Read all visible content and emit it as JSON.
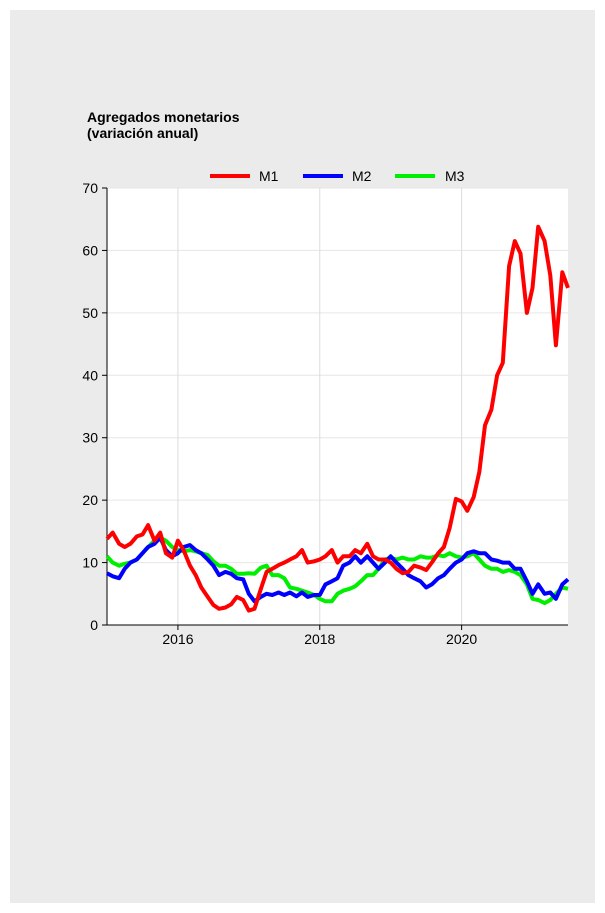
{
  "chart_data": {
    "type": "line",
    "title": "Agregados monetarios",
    "subtitle": "(variación anual)",
    "xlabel": "",
    "ylabel": "",
    "ylim": [
      0,
      70
    ],
    "yticks": [
      0,
      10,
      20,
      30,
      40,
      50,
      60,
      70
    ],
    "xlim": [
      2015.0,
      2021.5
    ],
    "xticks": [
      {
        "value": 2016.0,
        "label": "2016"
      },
      {
        "value": 2018.0,
        "label": "2018"
      },
      {
        "value": 2020.0,
        "label": "2020"
      }
    ],
    "grid": "vertical",
    "legend": "top",
    "series": [
      {
        "name": "M1",
        "color": "#ff0000",
        "points": [
          [
            2015.0,
            13.8
          ],
          [
            2015.08,
            14.8
          ],
          [
            2015.17,
            13.0
          ],
          [
            2015.25,
            12.5
          ],
          [
            2015.33,
            13.0
          ],
          [
            2015.42,
            14.2
          ],
          [
            2015.5,
            14.5
          ],
          [
            2015.58,
            16.0
          ],
          [
            2015.67,
            13.5
          ],
          [
            2015.75,
            14.8
          ],
          [
            2015.83,
            11.5
          ],
          [
            2015.92,
            10.8
          ],
          [
            2016.0,
            13.5
          ],
          [
            2016.08,
            12.0
          ],
          [
            2016.17,
            9.5
          ],
          [
            2016.25,
            8.0
          ],
          [
            2016.33,
            6.0
          ],
          [
            2016.42,
            4.5
          ],
          [
            2016.5,
            3.2
          ],
          [
            2016.58,
            2.6
          ],
          [
            2016.67,
            2.8
          ],
          [
            2016.75,
            3.3
          ],
          [
            2016.83,
            4.5
          ],
          [
            2016.92,
            4.0
          ],
          [
            2017.0,
            2.3
          ],
          [
            2017.08,
            2.6
          ],
          [
            2017.17,
            5.8
          ],
          [
            2017.25,
            8.5
          ],
          [
            2017.33,
            9.0
          ],
          [
            2017.42,
            9.6
          ],
          [
            2017.5,
            10.0
          ],
          [
            2017.58,
            10.5
          ],
          [
            2017.67,
            11.0
          ],
          [
            2017.75,
            12.0
          ],
          [
            2017.83,
            10.0
          ],
          [
            2017.92,
            10.2
          ],
          [
            2018.0,
            10.5
          ],
          [
            2018.08,
            11.0
          ],
          [
            2018.17,
            12.0
          ],
          [
            2018.25,
            10.0
          ],
          [
            2018.33,
            11.0
          ],
          [
            2018.42,
            11.0
          ],
          [
            2018.5,
            12.0
          ],
          [
            2018.58,
            11.5
          ],
          [
            2018.67,
            13.0
          ],
          [
            2018.75,
            11.0
          ],
          [
            2018.83,
            10.5
          ],
          [
            2018.92,
            10.5
          ],
          [
            2019.0,
            10.0
          ],
          [
            2019.08,
            9.0
          ],
          [
            2019.17,
            8.3
          ],
          [
            2019.25,
            8.5
          ],
          [
            2019.33,
            9.5
          ],
          [
            2019.42,
            9.2
          ],
          [
            2019.5,
            8.8
          ],
          [
            2019.58,
            10.0
          ],
          [
            2019.67,
            11.5
          ],
          [
            2019.75,
            12.5
          ],
          [
            2019.83,
            15.5
          ],
          [
            2019.92,
            20.2
          ],
          [
            2020.0,
            19.8
          ],
          [
            2020.08,
            18.3
          ],
          [
            2020.17,
            20.5
          ],
          [
            2020.25,
            24.5
          ],
          [
            2020.33,
            32.0
          ],
          [
            2020.42,
            34.5
          ],
          [
            2020.5,
            40.0
          ],
          [
            2020.58,
            42.0
          ],
          [
            2020.67,
            57.5
          ],
          [
            2020.75,
            61.5
          ],
          [
            2020.83,
            59.5
          ],
          [
            2020.92,
            50.0
          ],
          [
            2021.0,
            54.0
          ],
          [
            2021.08,
            63.8
          ],
          [
            2021.17,
            61.5
          ],
          [
            2021.25,
            56.0
          ],
          [
            2021.33,
            44.8
          ],
          [
            2021.42,
            56.5
          ],
          [
            2021.5,
            54.0
          ]
        ]
      },
      {
        "name": "M2",
        "color": "#0000ff",
        "points": [
          [
            2015.0,
            8.3
          ],
          [
            2015.08,
            7.8
          ],
          [
            2015.17,
            7.5
          ],
          [
            2015.25,
            9.0
          ],
          [
            2015.33,
            10.0
          ],
          [
            2015.42,
            10.5
          ],
          [
            2015.5,
            11.5
          ],
          [
            2015.58,
            12.5
          ],
          [
            2015.67,
            13.0
          ],
          [
            2015.75,
            14.0
          ],
          [
            2015.83,
            12.0
          ],
          [
            2015.92,
            11.0
          ],
          [
            2016.0,
            11.5
          ],
          [
            2016.08,
            12.5
          ],
          [
            2016.17,
            12.8
          ],
          [
            2016.25,
            12.0
          ],
          [
            2016.33,
            11.5
          ],
          [
            2016.42,
            10.5
          ],
          [
            2016.5,
            9.5
          ],
          [
            2016.58,
            8.0
          ],
          [
            2016.67,
            8.5
          ],
          [
            2016.75,
            8.2
          ],
          [
            2016.83,
            7.5
          ],
          [
            2016.92,
            7.3
          ],
          [
            2017.0,
            5.0
          ],
          [
            2017.08,
            3.8
          ],
          [
            2017.17,
            4.5
          ],
          [
            2017.25,
            5.0
          ],
          [
            2017.33,
            4.8
          ],
          [
            2017.42,
            5.2
          ],
          [
            2017.5,
            4.8
          ],
          [
            2017.58,
            5.2
          ],
          [
            2017.67,
            4.6
          ],
          [
            2017.75,
            5.2
          ],
          [
            2017.83,
            4.5
          ],
          [
            2017.92,
            4.8
          ],
          [
            2018.0,
            4.8
          ],
          [
            2018.08,
            6.5
          ],
          [
            2018.17,
            7.0
          ],
          [
            2018.25,
            7.5
          ],
          [
            2018.33,
            9.5
          ],
          [
            2018.42,
            10.0
          ],
          [
            2018.5,
            11.0
          ],
          [
            2018.58,
            10.0
          ],
          [
            2018.67,
            11.0
          ],
          [
            2018.75,
            10.0
          ],
          [
            2018.83,
            9.0
          ],
          [
            2018.92,
            10.0
          ],
          [
            2019.0,
            11.0
          ],
          [
            2019.08,
            10.0
          ],
          [
            2019.17,
            9.0
          ],
          [
            2019.25,
            8.0
          ],
          [
            2019.33,
            7.5
          ],
          [
            2019.42,
            7.0
          ],
          [
            2019.5,
            6.0
          ],
          [
            2019.58,
            6.5
          ],
          [
            2019.67,
            7.5
          ],
          [
            2019.75,
            8.0
          ],
          [
            2019.83,
            9.0
          ],
          [
            2019.92,
            10.0
          ],
          [
            2020.0,
            10.5
          ],
          [
            2020.08,
            11.5
          ],
          [
            2020.17,
            11.8
          ],
          [
            2020.25,
            11.5
          ],
          [
            2020.33,
            11.5
          ],
          [
            2020.42,
            10.5
          ],
          [
            2020.5,
            10.3
          ],
          [
            2020.58,
            10.0
          ],
          [
            2020.67,
            10.0
          ],
          [
            2020.75,
            9.0
          ],
          [
            2020.83,
            9.0
          ],
          [
            2020.92,
            7.0
          ],
          [
            2021.0,
            5.0
          ],
          [
            2021.08,
            6.5
          ],
          [
            2021.17,
            5.0
          ],
          [
            2021.25,
            5.2
          ],
          [
            2021.33,
            4.2
          ],
          [
            2021.42,
            6.5
          ],
          [
            2021.5,
            7.3
          ]
        ]
      },
      {
        "name": "M3",
        "color": "#00ee00",
        "points": [
          [
            2015.0,
            11.0
          ],
          [
            2015.08,
            10.0
          ],
          [
            2015.17,
            9.5
          ],
          [
            2015.25,
            9.8
          ],
          [
            2015.33,
            10.0
          ],
          [
            2015.42,
            10.5
          ],
          [
            2015.5,
            11.5
          ],
          [
            2015.58,
            12.5
          ],
          [
            2015.67,
            13.5
          ],
          [
            2015.75,
            14.0
          ],
          [
            2015.83,
            13.5
          ],
          [
            2015.92,
            12.5
          ],
          [
            2016.0,
            12.0
          ],
          [
            2016.08,
            11.8
          ],
          [
            2016.17,
            12.0
          ],
          [
            2016.25,
            11.8
          ],
          [
            2016.33,
            11.5
          ],
          [
            2016.42,
            11.2
          ],
          [
            2016.5,
            10.2
          ],
          [
            2016.58,
            9.5
          ],
          [
            2016.67,
            9.5
          ],
          [
            2016.75,
            9.0
          ],
          [
            2016.83,
            8.2
          ],
          [
            2016.92,
            8.2
          ],
          [
            2017.0,
            8.3
          ],
          [
            2017.08,
            8.2
          ],
          [
            2017.17,
            9.2
          ],
          [
            2017.25,
            9.5
          ],
          [
            2017.33,
            8.0
          ],
          [
            2017.42,
            8.0
          ],
          [
            2017.5,
            7.5
          ],
          [
            2017.58,
            6.0
          ],
          [
            2017.67,
            5.8
          ],
          [
            2017.75,
            5.5
          ],
          [
            2017.83,
            5.2
          ],
          [
            2017.92,
            4.8
          ],
          [
            2018.0,
            4.2
          ],
          [
            2018.08,
            3.8
          ],
          [
            2018.17,
            3.8
          ],
          [
            2018.25,
            5.0
          ],
          [
            2018.33,
            5.5
          ],
          [
            2018.42,
            5.8
          ],
          [
            2018.5,
            6.2
          ],
          [
            2018.58,
            7.0
          ],
          [
            2018.67,
            8.0
          ],
          [
            2018.75,
            8.0
          ],
          [
            2018.83,
            9.0
          ],
          [
            2018.92,
            10.5
          ],
          [
            2019.0,
            10.8
          ],
          [
            2019.08,
            10.5
          ],
          [
            2019.17,
            10.8
          ],
          [
            2019.25,
            10.5
          ],
          [
            2019.33,
            10.5
          ],
          [
            2019.42,
            11.0
          ],
          [
            2019.5,
            10.8
          ],
          [
            2019.58,
            10.8
          ],
          [
            2019.67,
            11.2
          ],
          [
            2019.75,
            11.0
          ],
          [
            2019.83,
            11.5
          ],
          [
            2019.92,
            11.0
          ],
          [
            2020.0,
            10.8
          ],
          [
            2020.08,
            11.0
          ],
          [
            2020.17,
            11.5
          ],
          [
            2020.25,
            10.5
          ],
          [
            2020.33,
            9.5
          ],
          [
            2020.42,
            9.0
          ],
          [
            2020.5,
            9.0
          ],
          [
            2020.58,
            8.5
          ],
          [
            2020.67,
            8.8
          ],
          [
            2020.75,
            8.5
          ],
          [
            2020.83,
            8.0
          ],
          [
            2020.92,
            6.5
          ],
          [
            2021.0,
            4.2
          ],
          [
            2021.08,
            4.0
          ],
          [
            2021.17,
            3.5
          ],
          [
            2021.25,
            4.0
          ],
          [
            2021.33,
            5.0
          ],
          [
            2021.42,
            6.0
          ],
          [
            2021.5,
            5.8
          ]
        ]
      }
    ]
  }
}
